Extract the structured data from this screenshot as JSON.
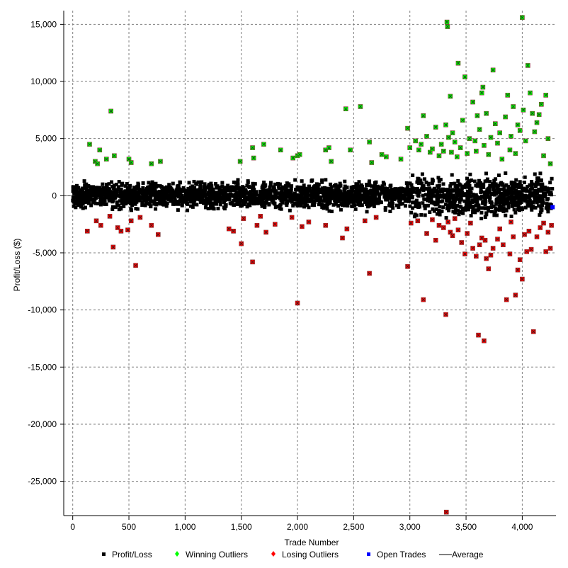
{
  "chart_data": {
    "type": "scatter",
    "xlabel": "Trade Number",
    "ylabel": "Profit/Loss ($)",
    "xlim": [
      -80,
      4300
    ],
    "ylim": [
      -28000,
      16200
    ],
    "x_ticks": [
      0,
      500,
      1000,
      1500,
      2000,
      2500,
      3000,
      3500,
      4000
    ],
    "x_tick_labels": [
      "0",
      "500",
      "1,000",
      "1,500",
      "2,000",
      "2,500",
      "3,000",
      "3,500",
      "4,000"
    ],
    "y_ticks": [
      15000,
      10000,
      5000,
      0,
      -5000,
      -10000,
      -15000,
      -20000,
      -25000
    ],
    "y_tick_labels": [
      "15,000",
      "10,000",
      "5,000",
      "0",
      "-5,000",
      "-10,000",
      "-15,000",
      "-20,000",
      "-25,000"
    ],
    "grid": true,
    "legend_position": "bottom",
    "average": 0,
    "colors": {
      "profit_loss": "#000000",
      "winning_outliers": "#00ff00",
      "losing_outliers": "#ff0000",
      "open_trades": "#0000ff",
      "average": "#000000"
    },
    "series": [
      {
        "name": "Profit/Loss",
        "points_note": "dense cluster of ~4,250 trades mostly between about -2,000 and +2,500",
        "x_range": [
          0,
          4270
        ],
        "y_range": [
          -2000,
          2500
        ]
      },
      {
        "name": "Winning Outliers",
        "points": [
          [
            150,
            4500
          ],
          [
            200,
            3000
          ],
          [
            220,
            2800
          ],
          [
            240,
            4000
          ],
          [
            300,
            3200
          ],
          [
            340,
            7400
          ],
          [
            370,
            3500
          ],
          [
            500,
            3200
          ],
          [
            520,
            2900
          ],
          [
            700,
            2800
          ],
          [
            780,
            3000
          ],
          [
            1490,
            3000
          ],
          [
            1600,
            4200
          ],
          [
            1610,
            3300
          ],
          [
            1700,
            4500
          ],
          [
            1850,
            4000
          ],
          [
            1960,
            3300
          ],
          [
            2000,
            3500
          ],
          [
            2020,
            3600
          ],
          [
            2250,
            4000
          ],
          [
            2280,
            4200
          ],
          [
            2300,
            3000
          ],
          [
            2430,
            7600
          ],
          [
            2470,
            4000
          ],
          [
            2560,
            7800
          ],
          [
            2640,
            4700
          ],
          [
            2660,
            2900
          ],
          [
            2750,
            3600
          ],
          [
            2790,
            3400
          ],
          [
            2920,
            3200
          ],
          [
            2980,
            5900
          ],
          [
            3000,
            4200
          ],
          [
            3050,
            4800
          ],
          [
            3080,
            4000
          ],
          [
            3100,
            4500
          ],
          [
            3120,
            7000
          ],
          [
            3150,
            5200
          ],
          [
            3180,
            3800
          ],
          [
            3200,
            4100
          ],
          [
            3230,
            6000
          ],
          [
            3260,
            3500
          ],
          [
            3280,
            4500
          ],
          [
            3300,
            3900
          ],
          [
            3320,
            6200
          ],
          [
            3330,
            15200
          ],
          [
            3335,
            14800
          ],
          [
            3345,
            5100
          ],
          [
            3360,
            8700
          ],
          [
            3370,
            3800
          ],
          [
            3380,
            5500
          ],
          [
            3400,
            4700
          ],
          [
            3420,
            3400
          ],
          [
            3430,
            11600
          ],
          [
            3450,
            4200
          ],
          [
            3470,
            6600
          ],
          [
            3490,
            10400
          ],
          [
            3510,
            3700
          ],
          [
            3530,
            5000
          ],
          [
            3560,
            8200
          ],
          [
            3580,
            4800
          ],
          [
            3590,
            3900
          ],
          [
            3600,
            7000
          ],
          [
            3620,
            5800
          ],
          [
            3640,
            9000
          ],
          [
            3650,
            9500
          ],
          [
            3660,
            4400
          ],
          [
            3680,
            7200
          ],
          [
            3700,
            3600
          ],
          [
            3720,
            5100
          ],
          [
            3740,
            11000
          ],
          [
            3760,
            6300
          ],
          [
            3780,
            4600
          ],
          [
            3800,
            5500
          ],
          [
            3820,
            3200
          ],
          [
            3850,
            6900
          ],
          [
            3870,
            8800
          ],
          [
            3890,
            4000
          ],
          [
            3900,
            5200
          ],
          [
            3920,
            7800
          ],
          [
            3940,
            3700
          ],
          [
            3960,
            6200
          ],
          [
            3980,
            5700
          ],
          [
            4000,
            15600
          ],
          [
            4010,
            7500
          ],
          [
            4030,
            4800
          ],
          [
            4050,
            11400
          ],
          [
            4070,
            9000
          ],
          [
            4090,
            7200
          ],
          [
            4110,
            5600
          ],
          [
            4130,
            6400
          ],
          [
            4150,
            7100
          ],
          [
            4170,
            8000
          ],
          [
            4190,
            3500
          ],
          [
            4210,
            8800
          ],
          [
            4230,
            5000
          ],
          [
            4250,
            2800
          ]
        ]
      },
      {
        "name": "Losing Outliers",
        "points": [
          [
            130,
            -3100
          ],
          [
            210,
            -2200
          ],
          [
            250,
            -2600
          ],
          [
            330,
            -1800
          ],
          [
            360,
            -4500
          ],
          [
            400,
            -2800
          ],
          [
            430,
            -3100
          ],
          [
            490,
            -3000
          ],
          [
            520,
            -2200
          ],
          [
            560,
            -6100
          ],
          [
            600,
            -1900
          ],
          [
            700,
            -2600
          ],
          [
            760,
            -3400
          ],
          [
            1390,
            -2900
          ],
          [
            1430,
            -3100
          ],
          [
            1500,
            -4200
          ],
          [
            1520,
            -2000
          ],
          [
            1600,
            -5800
          ],
          [
            1640,
            -2600
          ],
          [
            1670,
            -1800
          ],
          [
            1720,
            -3200
          ],
          [
            1800,
            -2500
          ],
          [
            1950,
            -1900
          ],
          [
            2000,
            -9400
          ],
          [
            2040,
            -2700
          ],
          [
            2100,
            -2300
          ],
          [
            2250,
            -2600
          ],
          [
            2400,
            -3700
          ],
          [
            2440,
            -2900
          ],
          [
            2600,
            -2200
          ],
          [
            2640,
            -6800
          ],
          [
            2700,
            -1900
          ],
          [
            2980,
            -6200
          ],
          [
            3010,
            -2400
          ],
          [
            3070,
            -2200
          ],
          [
            3120,
            -9100
          ],
          [
            3150,
            -3300
          ],
          [
            3200,
            -2100
          ],
          [
            3230,
            -3900
          ],
          [
            3260,
            -2600
          ],
          [
            3300,
            -2800
          ],
          [
            3320,
            -10400
          ],
          [
            3325,
            -27700
          ],
          [
            3340,
            -2300
          ],
          [
            3360,
            -3200
          ],
          [
            3380,
            -3500
          ],
          [
            3400,
            -2000
          ],
          [
            3430,
            -3000
          ],
          [
            3460,
            -4100
          ],
          [
            3490,
            -5100
          ],
          [
            3510,
            -3300
          ],
          [
            3540,
            -2400
          ],
          [
            3560,
            -4600
          ],
          [
            3590,
            -5300
          ],
          [
            3610,
            -12200
          ],
          [
            3620,
            -4300
          ],
          [
            3640,
            -3700
          ],
          [
            3660,
            -12700
          ],
          [
            3670,
            -3900
          ],
          [
            3680,
            -5500
          ],
          [
            3700,
            -6400
          ],
          [
            3720,
            -5200
          ],
          [
            3740,
            -4600
          ],
          [
            3780,
            -3800
          ],
          [
            3800,
            -2900
          ],
          [
            3830,
            -4300
          ],
          [
            3860,
            -9100
          ],
          [
            3890,
            -5100
          ],
          [
            3900,
            -2300
          ],
          [
            3920,
            -3600
          ],
          [
            3940,
            -8700
          ],
          [
            3960,
            -6500
          ],
          [
            3980,
            -5600
          ],
          [
            4000,
            -7300
          ],
          [
            4020,
            -3400
          ],
          [
            4040,
            -4900
          ],
          [
            4060,
            -3100
          ],
          [
            4080,
            -4700
          ],
          [
            4100,
            -11900
          ],
          [
            4130,
            -3600
          ],
          [
            4160,
            -2800
          ],
          [
            4190,
            -2400
          ],
          [
            4210,
            -4900
          ],
          [
            4230,
            -3200
          ],
          [
            4250,
            -4600
          ],
          [
            4260,
            -2600
          ]
        ]
      },
      {
        "name": "Open Trades",
        "points": [
          [
            4270,
            -1000
          ]
        ]
      },
      {
        "name": "Average",
        "value": 0
      }
    ],
    "legend": [
      {
        "label": "Profit/Loss",
        "marker": "square",
        "color": "#000000"
      },
      {
        "label": "Winning Outliers",
        "marker": "diamond",
        "color": "#00ff00"
      },
      {
        "label": "Losing Outliers",
        "marker": "diamond",
        "color": "#ff0000"
      },
      {
        "label": "Open Trades",
        "marker": "square",
        "color": "#0000ff"
      },
      {
        "label": "Average",
        "marker": "line",
        "color": "#000000"
      }
    ]
  }
}
